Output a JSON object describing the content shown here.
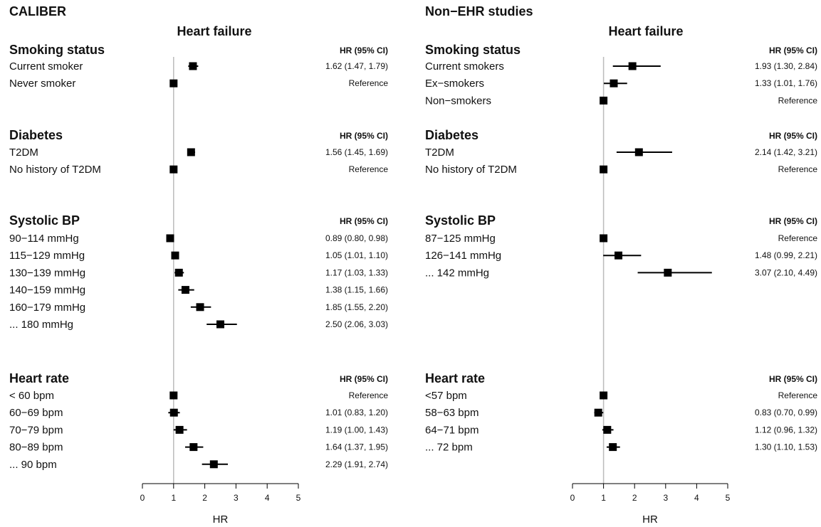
{
  "chart_data": [
    {
      "type": "forest",
      "title": "CALIBER",
      "subtitle": "Heart failure",
      "xlabel": "HR",
      "xlim": [
        0,
        5
      ],
      "xticks": [
        0,
        1,
        2,
        3,
        4,
        5
      ],
      "reference_line": 1,
      "column_header": "HR (95% CI)",
      "sections": [
        {
          "title": "Smoking status",
          "rows": [
            {
              "label": "Current smoker",
              "hr": 1.62,
              "lo": 1.47,
              "hi": 1.79,
              "text": "1.62 (1.47, 1.79)"
            },
            {
              "label": "Never smoker",
              "hr": 1,
              "lo": 1,
              "hi": 1,
              "text": "Reference"
            }
          ]
        },
        {
          "title": "Diabetes",
          "rows": [
            {
              "label": "T2DM",
              "hr": 1.56,
              "lo": 1.45,
              "hi": 1.69,
              "text": "1.56 (1.45, 1.69)"
            },
            {
              "label": "No history of T2DM",
              "hr": 1,
              "lo": 1,
              "hi": 1,
              "text": "Reference"
            }
          ]
        },
        {
          "title": "Systolic BP",
          "rows": [
            {
              "label": "90−114 mmHg",
              "hr": 0.89,
              "lo": 0.8,
              "hi": 0.98,
              "text": "0.89 (0.80, 0.98)"
            },
            {
              "label": "115−129 mmHg",
              "hr": 1.05,
              "lo": 1.01,
              "hi": 1.1,
              "text": "1.05 (1.01, 1.10)"
            },
            {
              "label": "130−139 mmHg",
              "hr": 1.17,
              "lo": 1.03,
              "hi": 1.33,
              "text": "1.17 (1.03, 1.33)"
            },
            {
              "label": "140−159 mmHg",
              "hr": 1.38,
              "lo": 1.15,
              "hi": 1.66,
              "text": "1.38 (1.15, 1.66)"
            },
            {
              "label": "160−179 mmHg",
              "hr": 1.85,
              "lo": 1.55,
              "hi": 2.2,
              "text": "1.85 (1.55, 2.20)"
            },
            {
              "label": "... 180 mmHg",
              "hr": 2.5,
              "lo": 2.06,
              "hi": 3.03,
              "text": "2.50 (2.06, 3.03)"
            }
          ]
        },
        {
          "title": "Heart rate",
          "rows": [
            {
              "label": "< 60 bpm",
              "hr": 1,
              "lo": 1,
              "hi": 1,
              "text": "Reference"
            },
            {
              "label": "60−69 bpm",
              "hr": 1.01,
              "lo": 0.83,
              "hi": 1.2,
              "text": "1.01 (0.83, 1.20)"
            },
            {
              "label": "70−79 bpm",
              "hr": 1.19,
              "lo": 1.0,
              "hi": 1.43,
              "text": "1.19 (1.00, 1.43)"
            },
            {
              "label": "80−89 bpm",
              "hr": 1.64,
              "lo": 1.37,
              "hi": 1.95,
              "text": "1.64 (1.37, 1.95)"
            },
            {
              "label": "... 90 bpm",
              "hr": 2.29,
              "lo": 1.91,
              "hi": 2.74,
              "text": "2.29 (1.91, 2.74)"
            }
          ]
        }
      ]
    },
    {
      "type": "forest",
      "title": "Non−EHR studies",
      "subtitle": "Heart failure",
      "xlabel": "HR",
      "xlim": [
        0,
        5
      ],
      "xticks": [
        0,
        1,
        2,
        3,
        4,
        5
      ],
      "reference_line": 1,
      "column_header": "HR (95% CI)",
      "sections": [
        {
          "title": "Smoking status",
          "rows": [
            {
              "label": "Current smokers",
              "hr": 1.93,
              "lo": 1.3,
              "hi": 2.84,
              "text": "1.93 (1.30, 2.84)"
            },
            {
              "label": "Ex−smokers",
              "hr": 1.33,
              "lo": 1.01,
              "hi": 1.76,
              "text": "1.33 (1.01, 1.76)"
            },
            {
              "label": "Non−smokers",
              "hr": 1,
              "lo": 1,
              "hi": 1,
              "text": "Reference"
            }
          ]
        },
        {
          "title": "Diabetes",
          "rows": [
            {
              "label": "T2DM",
              "hr": 2.14,
              "lo": 1.42,
              "hi": 3.21,
              "text": "2.14 (1.42, 3.21)"
            },
            {
              "label": "No history of T2DM",
              "hr": 1,
              "lo": 1,
              "hi": 1,
              "text": "Reference"
            }
          ]
        },
        {
          "title": "Systolic BP",
          "rows": [
            {
              "label": "87−125 mmHg",
              "hr": 1,
              "lo": 1,
              "hi": 1,
              "text": "Reference"
            },
            {
              "label": "126−141 mmHg",
              "hr": 1.48,
              "lo": 0.99,
              "hi": 2.21,
              "text": "1.48 (0.99, 2.21)"
            },
            {
              "label": "... 142 mmHg",
              "hr": 3.07,
              "lo": 2.1,
              "hi": 4.49,
              "text": "3.07 (2.10, 4.49)"
            }
          ]
        },
        {
          "title": "Heart rate",
          "rows": [
            {
              "label": "<57 bpm",
              "hr": 1,
              "lo": 1,
              "hi": 1,
              "text": "Reference"
            },
            {
              "label": "58−63 bpm",
              "hr": 0.83,
              "lo": 0.7,
              "hi": 0.99,
              "text": "0.83 (0.70, 0.99)"
            },
            {
              "label": "64−71 bpm",
              "hr": 1.12,
              "lo": 0.96,
              "hi": 1.32,
              "text": "1.12 (0.96, 1.32)"
            },
            {
              "label": "... 72 bpm",
              "hr": 1.3,
              "lo": 1.1,
              "hi": 1.53,
              "text": "1.30 (1.10, 1.53)"
            }
          ]
        }
      ]
    }
  ]
}
